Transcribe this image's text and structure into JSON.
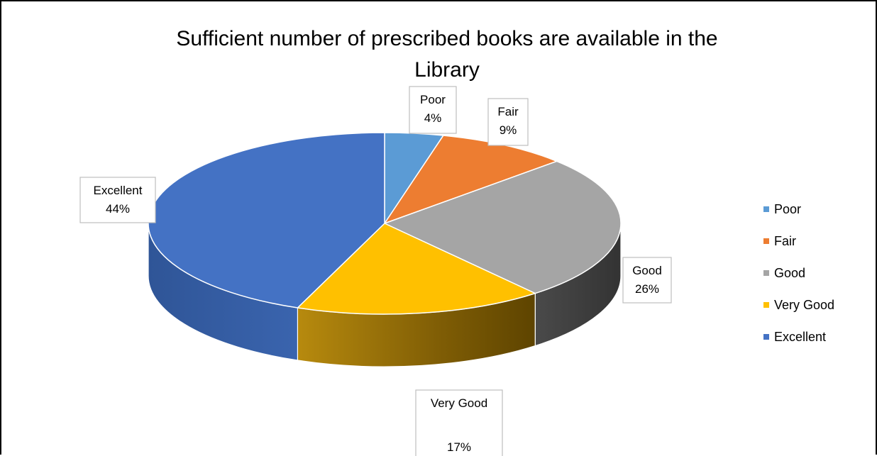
{
  "chart_data": {
    "type": "pie",
    "title": "Sufficient number of prescribed books are available in the Library",
    "title_lines": [
      "Sufficient number of prescribed books are available in the",
      "Library"
    ],
    "categories": [
      "Poor",
      "Fair",
      "Good",
      "Very Good",
      "Excellent"
    ],
    "values": [
      4,
      9,
      26,
      17,
      44
    ],
    "data_labels": [
      {
        "name": "Poor",
        "value": "4%"
      },
      {
        "name": "Fair",
        "value": "9%"
      },
      {
        "name": "Good",
        "value": "26%"
      },
      {
        "name": "Very Good",
        "value": "17%"
      },
      {
        "name": "Excellent",
        "value": "44%"
      }
    ],
    "colors": [
      "#5B9BD5",
      "#ED7D31",
      "#A5A5A5",
      "#FFC000",
      "#4472C4"
    ],
    "side_colors": [
      "#3E6F9E",
      "#A9561F",
      "#3F3F3F",
      "#7A5500",
      "#2F5597"
    ],
    "legend": {
      "position": "right",
      "entries": [
        "Poor",
        "Fair",
        "Good",
        "Very Good",
        "Excellent"
      ]
    },
    "style": "3d"
  }
}
